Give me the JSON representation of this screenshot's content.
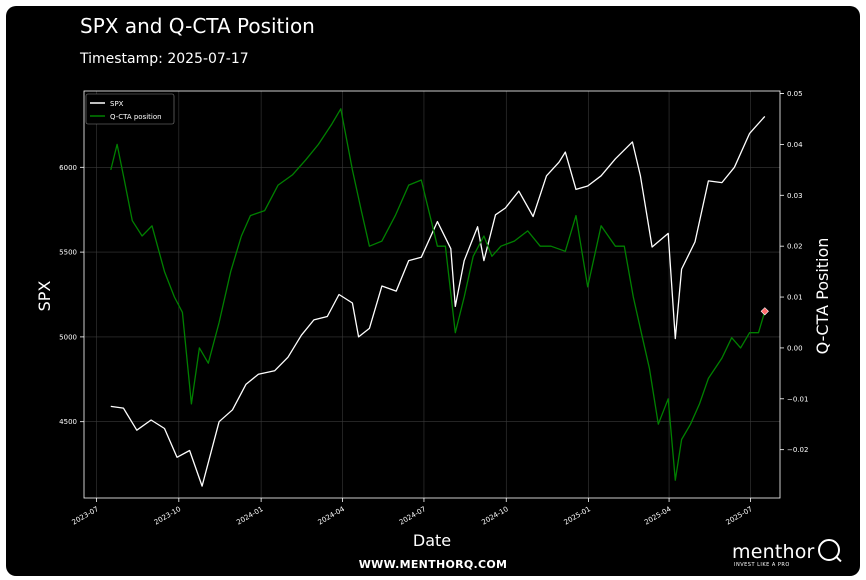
{
  "header": {
    "title": "SPX and Q-CTA Position",
    "subtitle": "Timestamp: 2025-07-17"
  },
  "footer": {
    "url": "WWW.MENTHORQ.COM",
    "logo_word": "menthor",
    "logo_icon": "magnifier-q-icon",
    "logo_tagline": "INVEST LIKE A PRO"
  },
  "colors": {
    "background": "#000000",
    "spx": "#ffffff",
    "cta": "#008000",
    "marker": "#ff6b6b",
    "grid": "#3a3a3a"
  },
  "chart_data": {
    "type": "line",
    "title": "SPX and Q-CTA Position",
    "xlabel": "Date",
    "ylabel": "SPX",
    "y2label": "Q-CTA Position",
    "legend_position": "top-left",
    "grid": true,
    "x_ticks": [
      "2023-07",
      "2023-10",
      "2024-01",
      "2024-04",
      "2024-07",
      "2024-10",
      "2025-01",
      "2025-04",
      "2025-07"
    ],
    "x_tick_dates": [
      "2023-07-01",
      "2023-10-01",
      "2024-01-01",
      "2024-04-01",
      "2024-07-01",
      "2024-10-01",
      "2025-01-01",
      "2025-04-01",
      "2025-07-01"
    ],
    "xlim": [
      "2023-06-17",
      "2025-08-03"
    ],
    "y_ticks": [
      4500,
      5000,
      5500,
      6000
    ],
    "ylim": [
      4050,
      6450
    ],
    "y2_ticks": [
      -0.02,
      -0.01,
      0.0,
      0.01,
      0.02,
      0.03,
      0.04,
      0.05
    ],
    "y2_tick_labels": [
      "−0.02",
      "−0.01",
      "0.00",
      "0.01",
      "0.02",
      "0.03",
      "0.04",
      "0.05"
    ],
    "y2lim": [
      -0.0295,
      0.0505
    ],
    "series": [
      {
        "name": "SPX",
        "axis": "left",
        "x": [
          "2023-07-17",
          "2023-07-31",
          "2023-08-15",
          "2023-08-31",
          "2023-09-15",
          "2023-09-29",
          "2023-10-13",
          "2023-10-27",
          "2023-11-15",
          "2023-11-30",
          "2023-12-15",
          "2023-12-29",
          "2024-01-16",
          "2024-01-31",
          "2024-02-15",
          "2024-02-29",
          "2024-03-15",
          "2024-03-28",
          "2024-04-12",
          "2024-04-19",
          "2024-05-01",
          "2024-05-15",
          "2024-05-31",
          "2024-06-14",
          "2024-06-28",
          "2024-07-16",
          "2024-07-31",
          "2024-08-05",
          "2024-08-15",
          "2024-08-30",
          "2024-09-06",
          "2024-09-19",
          "2024-09-30",
          "2024-10-15",
          "2024-10-31",
          "2024-11-15",
          "2024-11-29",
          "2024-12-06",
          "2024-12-18",
          "2024-12-31",
          "2025-01-15",
          "2025-01-31",
          "2025-02-19",
          "2025-02-28",
          "2025-03-13",
          "2025-03-31",
          "2025-04-08",
          "2025-04-15",
          "2025-04-30",
          "2025-05-15",
          "2025-05-30",
          "2025-06-13",
          "2025-06-30",
          "2025-07-17"
        ],
        "values": [
          4590,
          4580,
          4450,
          4510,
          4460,
          4290,
          4330,
          4120,
          4500,
          4570,
          4720,
          4780,
          4800,
          4880,
          5010,
          5100,
          5120,
          5250,
          5200,
          5000,
          5050,
          5300,
          5270,
          5450,
          5470,
          5680,
          5520,
          5180,
          5450,
          5650,
          5450,
          5720,
          5760,
          5860,
          5710,
          5950,
          6030,
          6090,
          5870,
          5890,
          5950,
          6050,
          6150,
          5950,
          5530,
          5610,
          4990,
          5400,
          5560,
          5920,
          5910,
          6000,
          6200,
          6300
        ]
      },
      {
        "name": "Q-CTA position",
        "axis": "right",
        "x": [
          "2023-07-17",
          "2023-07-24",
          "2023-08-01",
          "2023-08-10",
          "2023-08-21",
          "2023-09-01",
          "2023-09-15",
          "2023-09-26",
          "2023-10-05",
          "2023-10-15",
          "2023-10-24",
          "2023-11-03",
          "2023-11-15",
          "2023-11-28",
          "2023-12-10",
          "2023-12-20",
          "2024-01-05",
          "2024-01-20",
          "2024-02-05",
          "2024-02-20",
          "2024-03-05",
          "2024-03-20",
          "2024-03-30",
          "2024-04-12",
          "2024-04-22",
          "2024-05-01",
          "2024-05-15",
          "2024-05-30",
          "2024-06-14",
          "2024-06-28",
          "2024-07-16",
          "2024-07-25",
          "2024-08-05",
          "2024-08-15",
          "2024-08-25",
          "2024-09-06",
          "2024-09-15",
          "2024-09-25",
          "2024-10-10",
          "2024-10-25",
          "2024-11-08",
          "2024-11-20",
          "2024-12-06",
          "2024-12-18",
          "2024-12-31",
          "2025-01-15",
          "2025-01-31",
          "2025-02-10",
          "2025-02-20",
          "2025-03-01",
          "2025-03-10",
          "2025-03-20",
          "2025-03-31",
          "2025-04-08",
          "2025-04-15",
          "2025-04-25",
          "2025-05-05",
          "2025-05-15",
          "2025-05-30",
          "2025-06-10",
          "2025-06-20",
          "2025-06-30",
          "2025-07-10",
          "2025-07-17"
        ],
        "values": [
          0.035,
          0.04,
          0.033,
          0.025,
          0.022,
          0.024,
          0.015,
          0.01,
          0.007,
          -0.011,
          0.0,
          -0.003,
          0.005,
          0.015,
          0.022,
          0.026,
          0.027,
          0.032,
          0.034,
          0.037,
          0.04,
          0.044,
          0.047,
          0.035,
          0.027,
          0.02,
          0.021,
          0.026,
          0.032,
          0.033,
          0.02,
          0.02,
          0.003,
          0.01,
          0.018,
          0.022,
          0.018,
          0.02,
          0.021,
          0.023,
          0.02,
          0.02,
          0.019,
          0.026,
          0.012,
          0.024,
          0.02,
          0.02,
          0.01,
          0.003,
          -0.004,
          -0.015,
          -0.01,
          -0.026,
          -0.018,
          -0.015,
          -0.011,
          -0.006,
          -0.002,
          0.002,
          0.0,
          0.003,
          0.003,
          0.0072
        ]
      }
    ],
    "last_point_marker": {
      "series": "Q-CTA position",
      "x": "2025-07-17",
      "value": 0.0072
    }
  }
}
